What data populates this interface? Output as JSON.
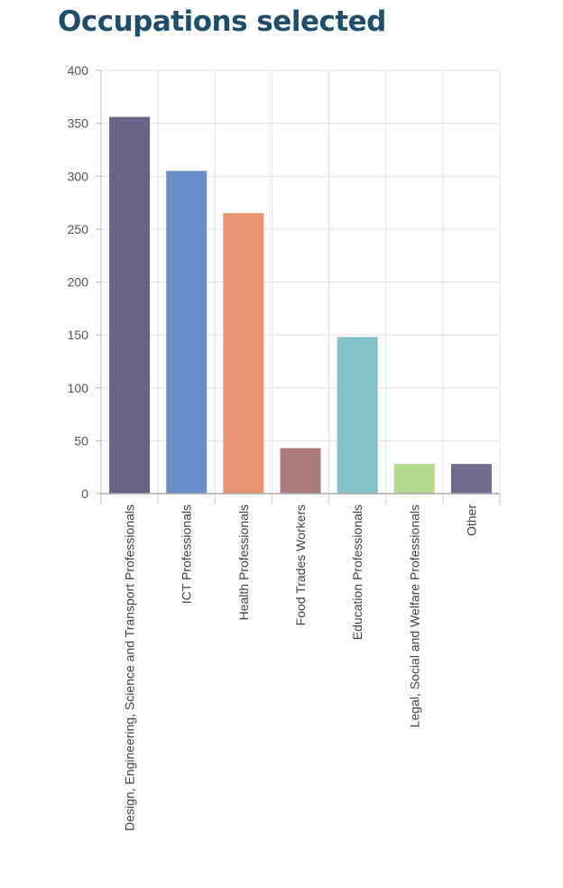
{
  "page": {
    "title": "Occupations selected"
  },
  "chart_data": {
    "type": "bar",
    "title": "Occupations selected",
    "xlabel": "",
    "ylabel": "",
    "categories": [
      "Design, Engineering, Science and Transport Professionals",
      "ICT Professionals",
      "Health Professionals",
      "Food Trades Workers",
      "Education Professionals",
      "Legal, Social and Welfare Professionals",
      "Other"
    ],
    "values": [
      356,
      305,
      265,
      43,
      148,
      28,
      28
    ],
    "colors": [
      "#6b6386",
      "#6a8fc8",
      "#e79572",
      "#ac7c7a",
      "#86c1c6",
      "#b5d98e",
      "#6e6b8f"
    ],
    "ylim": [
      0,
      400
    ],
    "yticks": [
      0,
      50,
      100,
      150,
      200,
      250,
      300,
      350,
      400
    ],
    "grid": true,
    "legend": "none"
  }
}
